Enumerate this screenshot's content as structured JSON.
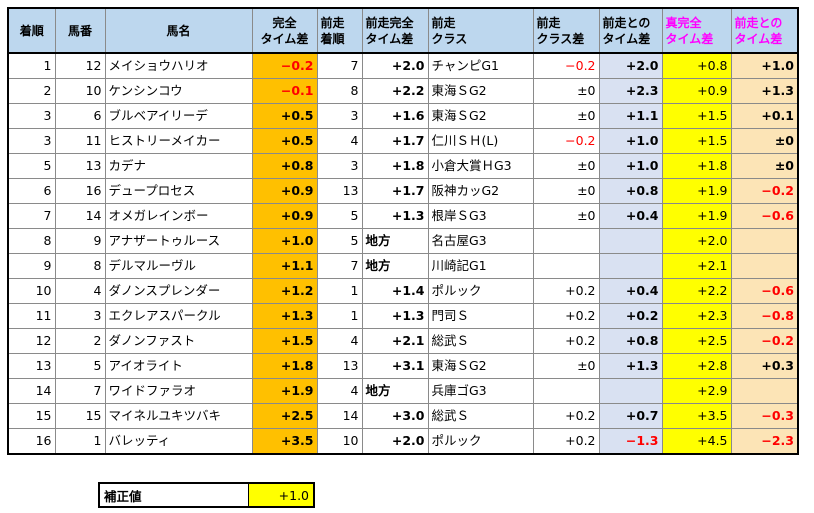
{
  "headers": {
    "rank": "着順",
    "number": "馬番",
    "name": "馬名",
    "full_time": "完全\nタイム差",
    "prev_rank": "前走\n着順",
    "prev_full_time": "前走完全\nタイム差",
    "prev_class": "前走\nクラス",
    "class_diff": "前走\nクラス差",
    "prev_time": "前走との\nタイム差",
    "true_full": "真完全\nタイム差",
    "diff_from_prev": "前走との\nタイム差"
  },
  "rows": [
    {
      "rank": "1",
      "num": "12",
      "name": "メイショウハリオ",
      "full": "−0.2",
      "prank": "7",
      "pfull": "+2.0",
      "pclass": "チャンピG1",
      "cdiff": "−0.2",
      "ptime": "+2.0",
      "tfull": "+0.8",
      "dprev": "+1.0"
    },
    {
      "rank": "2",
      "num": "10",
      "name": "ケンシンコウ",
      "full": "−0.1",
      "prank": "8",
      "pfull": "+2.2",
      "pclass": "東海ＳG2",
      "cdiff": "±0",
      "ptime": "+2.3",
      "tfull": "+0.9",
      "dprev": "+1.3"
    },
    {
      "rank": "3",
      "num": "6",
      "name": "ブルベアイリーデ",
      "full": "+0.5",
      "prank": "3",
      "pfull": "+1.6",
      "pclass": "東海ＳG2",
      "cdiff": "±0",
      "ptime": "+1.1",
      "tfull": "+1.5",
      "dprev": "+0.1"
    },
    {
      "rank": "3",
      "num": "11",
      "name": "ヒストリーメイカー",
      "full": "+0.5",
      "prank": "4",
      "pfull": "+1.7",
      "pclass": "仁川ＳＨ(L)",
      "cdiff": "−0.2",
      "ptime": "+1.0",
      "tfull": "+1.5",
      "dprev": "±0"
    },
    {
      "rank": "5",
      "num": "13",
      "name": "カデナ",
      "full": "+0.8",
      "prank": "3",
      "pfull": "+1.8",
      "pclass": "小倉大賞ＨG3",
      "cdiff": "±0",
      "ptime": "+1.0",
      "tfull": "+1.8",
      "dprev": "±0"
    },
    {
      "rank": "6",
      "num": "16",
      "name": "デュープロセス",
      "full": "+0.9",
      "prank": "13",
      "pfull": "+1.7",
      "pclass": "阪神カッG2",
      "cdiff": "±0",
      "ptime": "+0.8",
      "tfull": "+1.9",
      "dprev": "−0.2"
    },
    {
      "rank": "7",
      "num": "14",
      "name": "オメガレインボー",
      "full": "+0.9",
      "prank": "5",
      "pfull": "+1.3",
      "pclass": "根岸ＳG3",
      "cdiff": "±0",
      "ptime": "+0.4",
      "tfull": "+1.9",
      "dprev": "−0.6"
    },
    {
      "rank": "8",
      "num": "9",
      "name": "アナザートゥルース",
      "full": "+1.0",
      "prank": "5",
      "pfull": "地方",
      "pclass": "名古屋G3",
      "cdiff": "",
      "ptime": "",
      "tfull": "+2.0",
      "dprev": ""
    },
    {
      "rank": "9",
      "num": "8",
      "name": "デルマルーヴル",
      "full": "+1.1",
      "prank": "7",
      "pfull": "地方",
      "pclass": "川崎記G1",
      "cdiff": "",
      "ptime": "",
      "tfull": "+2.1",
      "dprev": ""
    },
    {
      "rank": "10",
      "num": "4",
      "name": "ダノンスプレンダー",
      "full": "+1.2",
      "prank": "1",
      "pfull": "+1.4",
      "pclass": "ポルック",
      "cdiff": "+0.2",
      "ptime": "+0.4",
      "tfull": "+2.2",
      "dprev": "−0.6"
    },
    {
      "rank": "11",
      "num": "3",
      "name": "エクレアスパークル",
      "full": "+1.3",
      "prank": "1",
      "pfull": "+1.3",
      "pclass": "門司Ｓ",
      "cdiff": "+0.2",
      "ptime": "+0.2",
      "tfull": "+2.3",
      "dprev": "−0.8"
    },
    {
      "rank": "12",
      "num": "2",
      "name": "ダノンファスト",
      "full": "+1.5",
      "prank": "4",
      "pfull": "+2.1",
      "pclass": "総武Ｓ",
      "cdiff": "+0.2",
      "ptime": "+0.8",
      "tfull": "+2.5",
      "dprev": "−0.2"
    },
    {
      "rank": "13",
      "num": "5",
      "name": "アイオライト",
      "full": "+1.8",
      "prank": "13",
      "pfull": "+3.1",
      "pclass": "東海ＳG2",
      "cdiff": "±0",
      "ptime": "+1.3",
      "tfull": "+2.8",
      "dprev": "+0.3"
    },
    {
      "rank": "14",
      "num": "7",
      "name": "ワイドファラオ",
      "full": "+1.9",
      "prank": "4",
      "pfull": "地方",
      "pclass": "兵庫ゴG3",
      "cdiff": "",
      "ptime": "",
      "tfull": "+2.9",
      "dprev": ""
    },
    {
      "rank": "15",
      "num": "15",
      "name": "マイネルユキツバキ",
      "full": "+2.5",
      "prank": "14",
      "pfull": "+3.0",
      "pclass": "総武Ｓ",
      "cdiff": "+0.2",
      "ptime": "+0.7",
      "tfull": "+3.5",
      "dprev": "−0.3"
    },
    {
      "rank": "16",
      "num": "1",
      "name": "バレッティ",
      "full": "+3.5",
      "prank": "10",
      "pfull": "+2.0",
      "pclass": "ポルック",
      "cdiff": "+0.2",
      "ptime": "−1.3",
      "tfull": "+4.5",
      "dprev": "−2.3"
    }
  ],
  "correction": {
    "label": "補正値",
    "value": "+1.0"
  },
  "colors": {
    "header": "#bdd7ee",
    "orange": "#ffc000",
    "blue": "#d9e1f2",
    "yellow": "#ffff00",
    "peach": "#fce4b6",
    "negative": "#ff0000",
    "magenta": "#ff00ff"
  }
}
